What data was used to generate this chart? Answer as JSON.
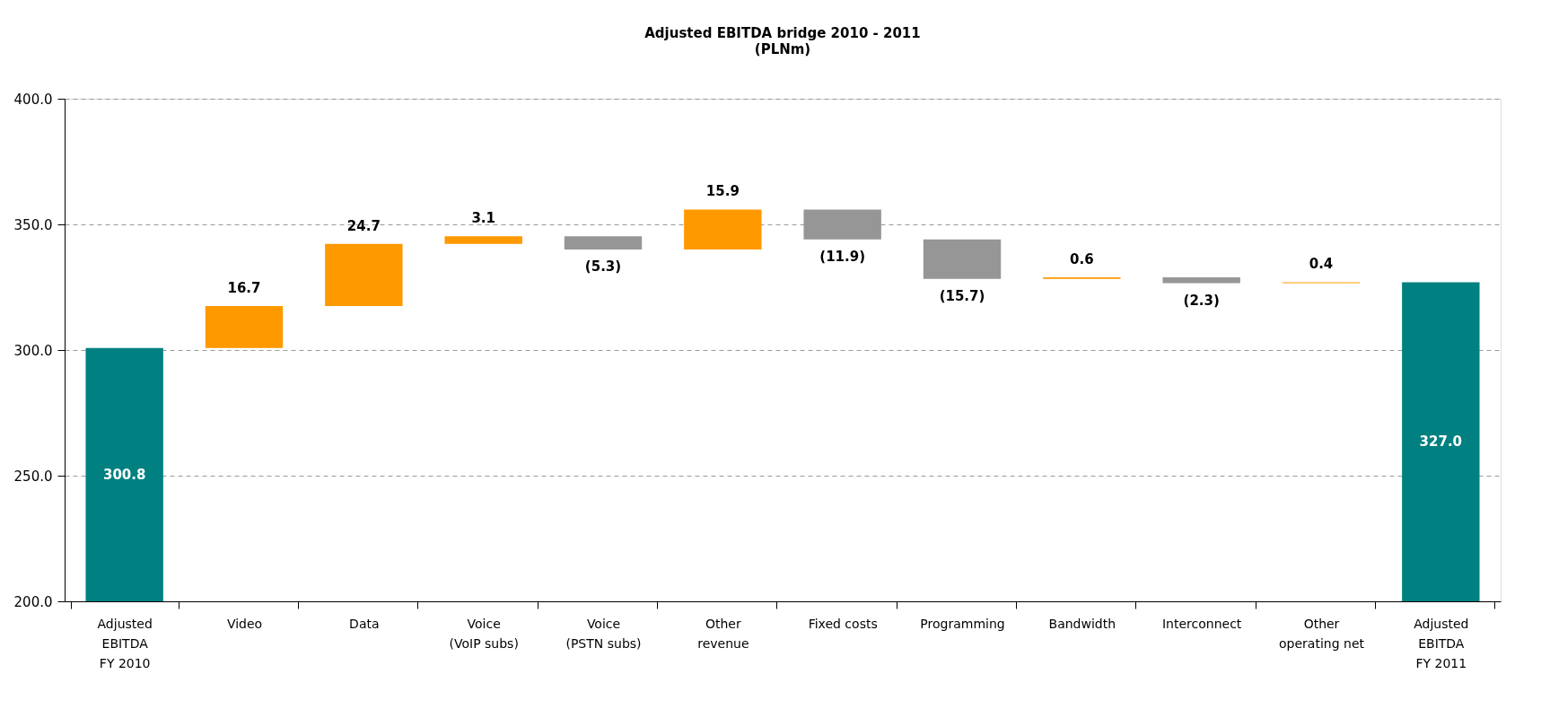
{
  "chart_data": {
    "type": "bar",
    "title": "Adjusted EBITDA bridge 2010 - 2011",
    "subtitle": "(PLNm)",
    "categories": [
      "Adjusted\nEBITDA\nFY 2010",
      "Video",
      "Data",
      "Voice\n(VoIP subs)",
      "Voice\n(PSTN subs)",
      "Other\nrevenue",
      "Fixed costs",
      "Programming",
      "Bandwidth",
      "Interconnect",
      "Other\noperating net",
      "Adjusted\nEBITDA\nFY 2011"
    ],
    "values": [
      300.8,
      16.7,
      24.7,
      3.1,
      -5.3,
      15.9,
      -11.9,
      -15.7,
      0.6,
      -2.3,
      0.4,
      327.0
    ],
    "base": [
      null,
      300.8,
      317.5,
      342.2,
      345.3,
      340.0,
      355.9,
      344.0,
      328.3,
      328.9,
      326.6,
      null
    ],
    "colors": [
      "#008080",
      "#ff9900",
      "#ff9900",
      "#ff9900",
      "#969696",
      "#ff9900",
      "#969696",
      "#969696",
      "#ff9900",
      "#969696",
      "#ff9900",
      "#008080"
    ],
    "value_labels": [
      "300.8",
      "16.7",
      "24.7",
      "3.1",
      "(5.3)",
      "15.9",
      "(11.9)",
      "(15.7)",
      "0.6",
      "(2.3)",
      "0.4",
      "327.0"
    ],
    "ylim": [
      200,
      400
    ],
    "yticks": [
      {
        "value": 200,
        "label": "200.0"
      },
      {
        "value": 250,
        "label": "250.0"
      },
      {
        "value": 300,
        "label": "300.0"
      },
      {
        "value": 350,
        "label": "350.0"
      },
      {
        "value": 400,
        "label": "400.0"
      }
    ],
    "grid": "y"
  }
}
